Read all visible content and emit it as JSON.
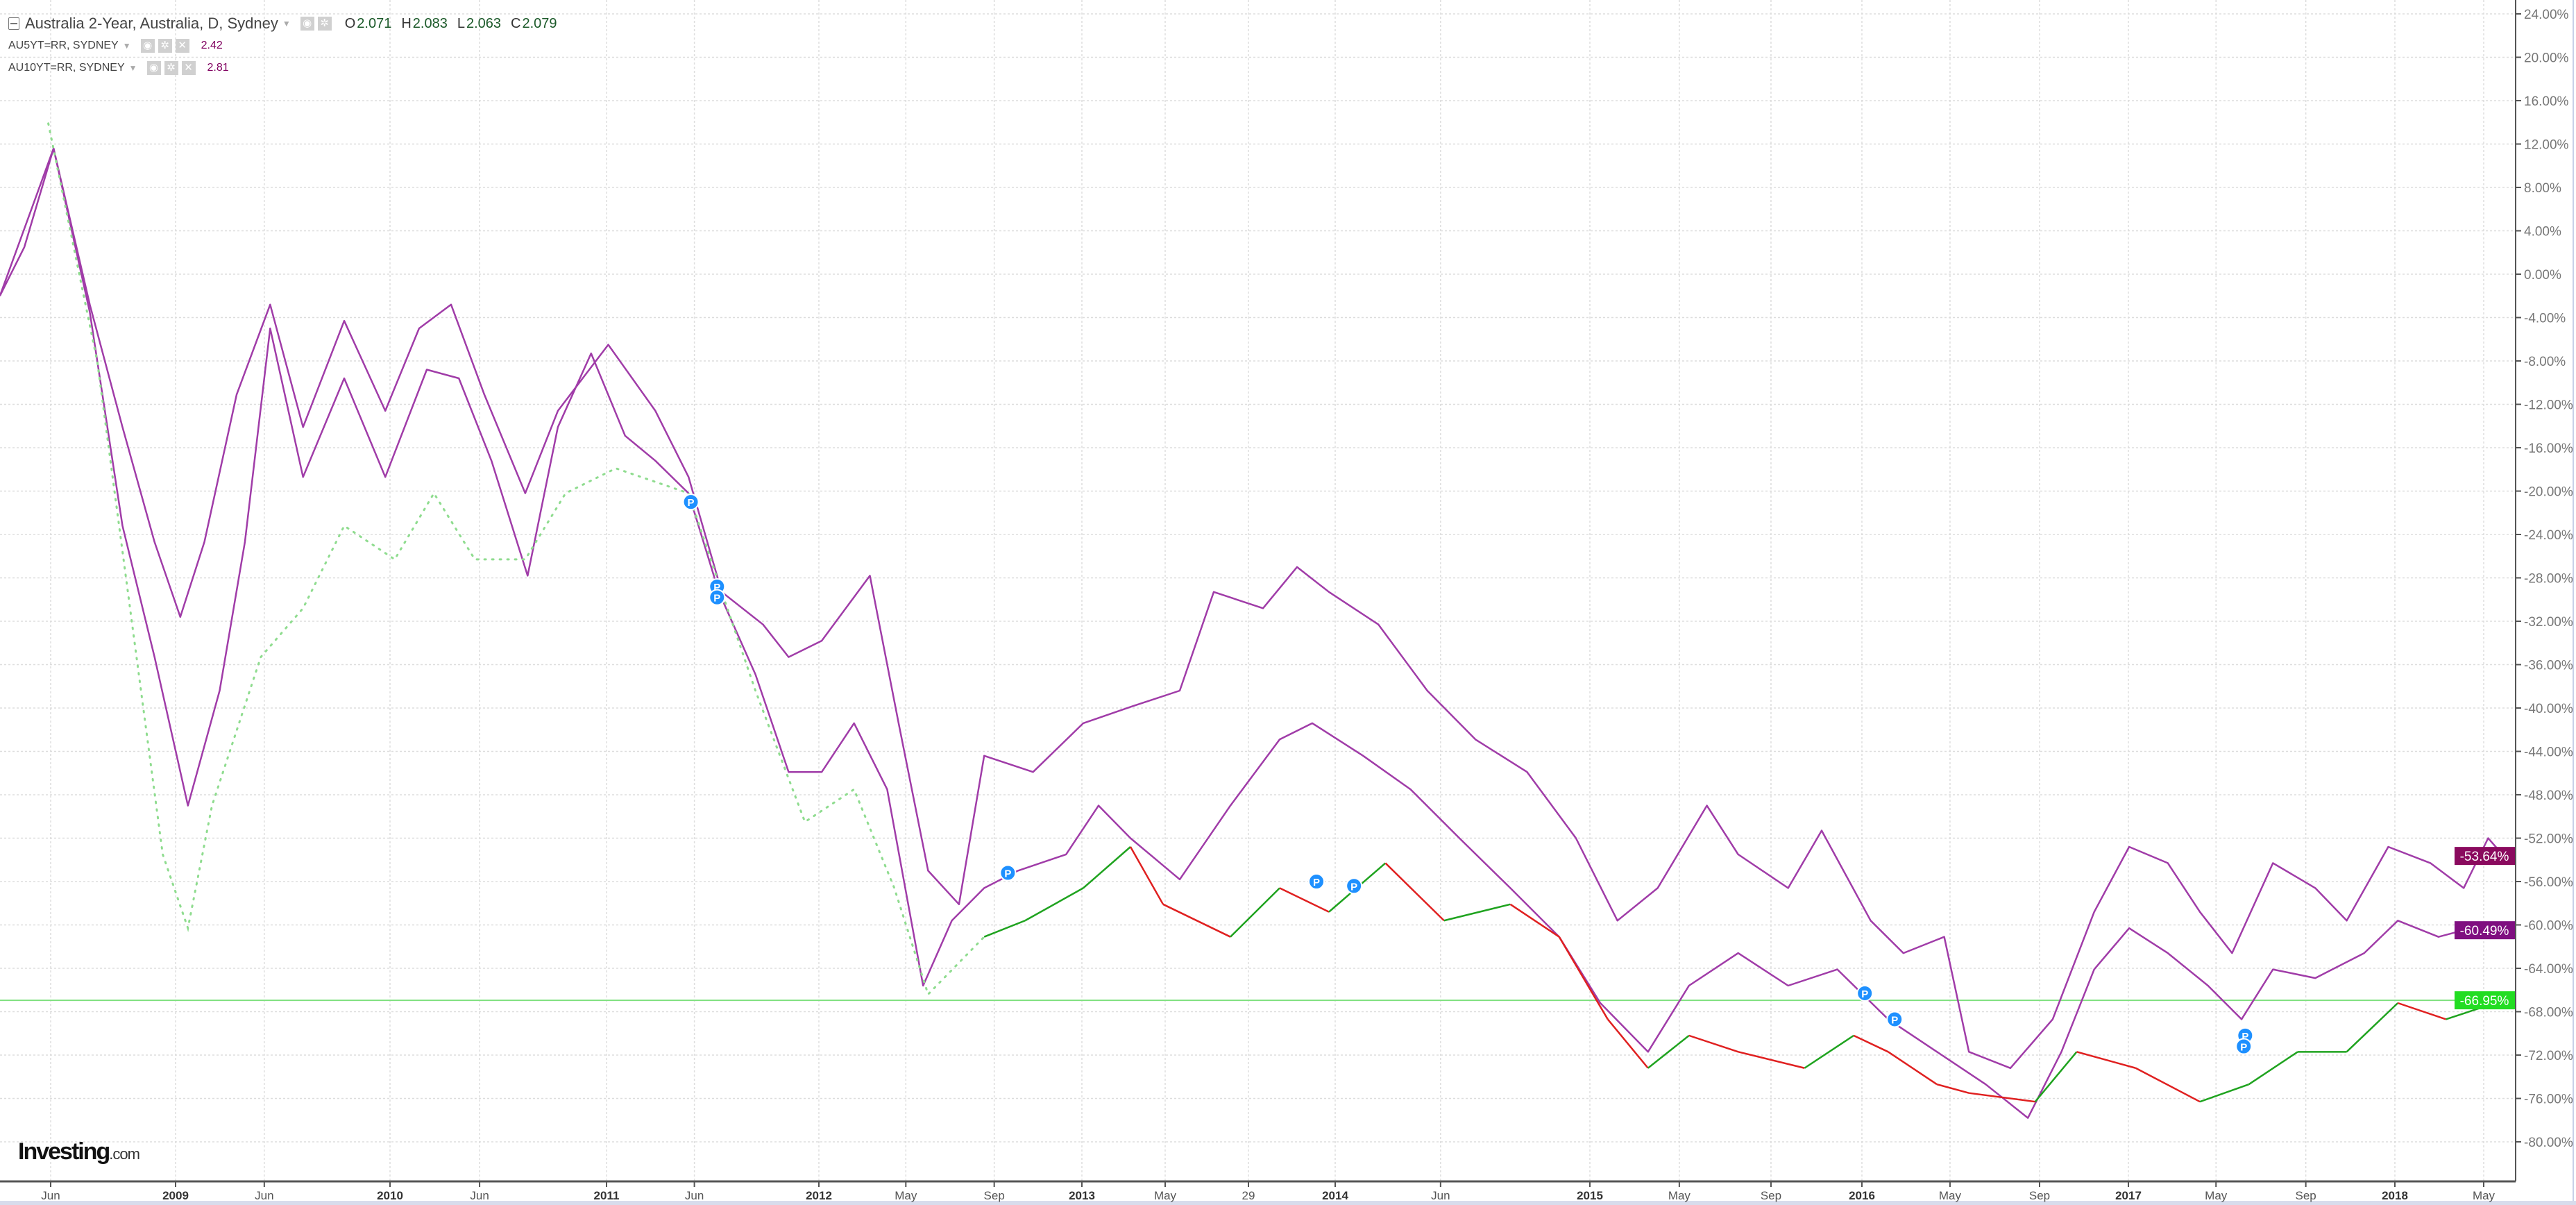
{
  "header": {
    "title": "Australia 2-Year, Australia, D, Sydney",
    "ohlc": [
      {
        "k": "O",
        "v": "2.071"
      },
      {
        "k": "H",
        "v": "2.083"
      },
      {
        "k": "L",
        "v": "2.063"
      },
      {
        "k": "C",
        "v": "2.079"
      }
    ],
    "overlays": [
      {
        "label": "AU5YT=RR, SYDNEY",
        "value": "2.42"
      },
      {
        "label": "AU10YT=RR, SYDNEY",
        "value": "2.81"
      }
    ],
    "icons": [
      "collapse-icon",
      "caret-down-icon",
      "eye-icon",
      "gear-icon",
      "close-icon"
    ]
  },
  "logo": {
    "text": "Investing",
    "suffix": ".com"
  },
  "colors": {
    "series_line": "#a03ca8",
    "label_10y": "#8a0a5e",
    "label_5y": "#7f0f80",
    "label_2y": "#22dd22",
    "candle_up": "#1fa31f",
    "candle_down": "#e02020",
    "early_dots": "#8fdc8f",
    "marker": "#1e90ff",
    "grid": "#dddddd",
    "axis_text": "#777777"
  },
  "chart_data": {
    "type": "line",
    "ylim": [
      -80,
      24
    ],
    "y_unit": "%",
    "y_axis_side": "right",
    "grid": true,
    "yticks": [
      "24.00%",
      "20.00%",
      "16.00%",
      "12.00%",
      "8.00%",
      "4.00%",
      "0.00%",
      "-4.00%",
      "-8.00%",
      "-12.00%",
      "-16.00%",
      "-20.00%",
      "-24.00%",
      "-28.00%",
      "-32.00%",
      "-36.00%",
      "-40.00%",
      "-44.00%",
      "-48.00%",
      "-52.00%",
      "-56.00%",
      "-60.00%",
      "-64.00%",
      "-68.00%",
      "-72.00%",
      "-76.00%",
      "-80.00%"
    ],
    "ytick_values": [
      24,
      20,
      16,
      12,
      8,
      4,
      0,
      -4,
      -8,
      -12,
      -16,
      -20,
      -24,
      -28,
      -32,
      -36,
      -40,
      -44,
      -48,
      -52,
      -56,
      -60,
      -64,
      -68,
      -72,
      -76,
      -80
    ],
    "xlim": [
      "2008-03-06",
      "2018-06-01"
    ],
    "xticks": [
      {
        "date": "2008-06-01",
        "label": "Jun",
        "major": false
      },
      {
        "date": "2009-01-01",
        "label": "2009",
        "major": true
      },
      {
        "date": "2009-06-01",
        "label": "Jun",
        "major": false
      },
      {
        "date": "2010-01-01",
        "label": "2010",
        "major": true
      },
      {
        "date": "2010-06-01",
        "label": "Jun",
        "major": false
      },
      {
        "date": "2011-01-01",
        "label": "2011",
        "major": true
      },
      {
        "date": "2011-06-01",
        "label": "Jun",
        "major": false
      },
      {
        "date": "2012-01-01",
        "label": "2012",
        "major": true
      },
      {
        "date": "2012-05-01",
        "label": "May",
        "major": false
      },
      {
        "date": "2012-09-01",
        "label": "Sep",
        "major": false
      },
      {
        "date": "2013-01-01",
        "label": "2013",
        "major": true
      },
      {
        "date": "2013-05-01",
        "label": "May",
        "major": false
      },
      {
        "date": "2013-08-29",
        "label": "29",
        "major": false
      },
      {
        "date": "2014-01-01",
        "label": "2014",
        "major": true
      },
      {
        "date": "2014-06-01",
        "label": "Jun",
        "major": false
      },
      {
        "date": "2015-01-01",
        "label": "2015",
        "major": true
      },
      {
        "date": "2015-05-01",
        "label": "May",
        "major": false
      },
      {
        "date": "2015-09-01",
        "label": "Sep",
        "major": false
      },
      {
        "date": "2016-01-01",
        "label": "2016",
        "major": true
      },
      {
        "date": "2016-05-01",
        "label": "May",
        "major": false
      },
      {
        "date": "2016-09-01",
        "label": "Sep",
        "major": false
      },
      {
        "date": "2017-01-01",
        "label": "2017",
        "major": true
      },
      {
        "date": "2017-05-01",
        "label": "May",
        "major": false
      },
      {
        "date": "2017-09-01",
        "label": "Sep",
        "major": false
      },
      {
        "date": "2018-01-01",
        "label": "2018",
        "major": true
      },
      {
        "date": "2018-05-01",
        "label": "May",
        "major": false
      }
    ],
    "reference_line": {
      "value": -66.95,
      "label": "-66.95%"
    },
    "series": [
      {
        "name": "AU10YT=RR, SYDNEY",
        "last_label": "-53.64%",
        "points": [
          [
            "2008-03-06",
            -2.0
          ],
          [
            "2008-04-17",
            2.5
          ],
          [
            "2008-06-06",
            11.6
          ],
          [
            "2008-08-07",
            -2.8
          ],
          [
            "2008-10-02",
            -14.1
          ],
          [
            "2008-11-26",
            -24.7
          ],
          [
            "2009-01-09",
            -31.6
          ],
          [
            "2009-02-19",
            -24.7
          ],
          [
            "2009-04-15",
            -11.1
          ],
          [
            "2009-06-11",
            -2.8
          ],
          [
            "2009-08-06",
            -14.1
          ],
          [
            "2009-10-15",
            -4.3
          ],
          [
            "2009-12-24",
            -12.6
          ],
          [
            "2010-02-19",
            -5.0
          ],
          [
            "2010-04-14",
            -2.8
          ],
          [
            "2010-06-09",
            -11.1
          ],
          [
            "2010-08-17",
            -20.2
          ],
          [
            "2010-10-11",
            -12.6
          ],
          [
            "2011-01-04",
            -6.5
          ],
          [
            "2011-03-26",
            -12.6
          ],
          [
            "2011-05-22",
            -18.7
          ],
          [
            "2011-07-18",
            -29.3
          ],
          [
            "2011-09-27",
            -32.3
          ],
          [
            "2011-11-10",
            -35.3
          ],
          [
            "2012-01-05",
            -33.8
          ],
          [
            "2012-03-12",
            -27.8
          ],
          [
            "2012-04-21",
            -41.4
          ],
          [
            "2012-06-01",
            -55.0
          ],
          [
            "2012-07-14",
            -58.1
          ],
          [
            "2012-08-18",
            -44.4
          ],
          [
            "2012-10-25",
            -45.9
          ],
          [
            "2013-01-03",
            -41.4
          ],
          [
            "2013-03-12",
            -39.9
          ],
          [
            "2013-05-22",
            -38.4
          ],
          [
            "2013-07-10",
            -29.3
          ],
          [
            "2013-09-19",
            -30.8
          ],
          [
            "2013-11-07",
            -27.0
          ],
          [
            "2013-12-23",
            -29.3
          ],
          [
            "2014-03-04",
            -32.3
          ],
          [
            "2014-05-13",
            -38.4
          ],
          [
            "2014-07-21",
            -42.9
          ],
          [
            "2014-10-03",
            -45.9
          ],
          [
            "2014-12-12",
            -52.0
          ],
          [
            "2015-02-07",
            -59.6
          ],
          [
            "2015-04-02",
            -56.6
          ],
          [
            "2015-06-07",
            -49.0
          ],
          [
            "2015-07-19",
            -53.5
          ],
          [
            "2015-09-24",
            -56.6
          ],
          [
            "2015-11-08",
            -51.3
          ],
          [
            "2016-01-13",
            -59.6
          ],
          [
            "2016-02-27",
            -62.6
          ],
          [
            "2016-04-23",
            -61.1
          ],
          [
            "2016-05-27",
            -71.7
          ],
          [
            "2016-07-23",
            -73.2
          ],
          [
            "2016-09-19",
            -68.7
          ],
          [
            "2016-11-15",
            -58.8
          ],
          [
            "2017-01-02",
            -52.8
          ],
          [
            "2017-02-24",
            -54.3
          ],
          [
            "2017-04-09",
            -58.8
          ],
          [
            "2017-05-23",
            -62.6
          ],
          [
            "2017-07-18",
            -54.3
          ],
          [
            "2017-09-14",
            -56.6
          ],
          [
            "2017-10-27",
            -59.6
          ],
          [
            "2017-12-23",
            -52.8
          ],
          [
            "2018-02-18",
            -54.3
          ],
          [
            "2018-04-04",
            -56.6
          ],
          [
            "2018-05-07",
            -52.0
          ],
          [
            "2018-05-28",
            -53.64
          ]
        ]
      },
      {
        "name": "AU5YT=RR, SYDNEY",
        "last_label": "-60.49%",
        "points": [
          [
            "2008-03-06",
            -2.0
          ],
          [
            "2008-06-06",
            11.6
          ],
          [
            "2008-08-07",
            -3.5
          ],
          [
            "2008-10-02",
            -23.2
          ],
          [
            "2008-11-26",
            -35.3
          ],
          [
            "2009-01-22",
            -49.0
          ],
          [
            "2009-03-17",
            -38.4
          ],
          [
            "2009-04-29",
            -24.7
          ],
          [
            "2009-06-11",
            -5.0
          ],
          [
            "2009-08-06",
            -18.7
          ],
          [
            "2009-10-15",
            -9.6
          ],
          [
            "2009-12-24",
            -18.7
          ],
          [
            "2010-03-04",
            -8.8
          ],
          [
            "2010-04-27",
            -9.6
          ],
          [
            "2010-06-21",
            -17.2
          ],
          [
            "2010-08-21",
            -27.8
          ],
          [
            "2010-10-11",
            -14.1
          ],
          [
            "2010-12-06",
            -7.3
          ],
          [
            "2011-02-02",
            -14.9
          ],
          [
            "2011-03-26",
            -17.2
          ],
          [
            "2011-05-22",
            -20.2
          ],
          [
            "2011-07-13",
            -29.3
          ],
          [
            "2011-09-14",
            -36.9
          ],
          [
            "2011-11-10",
            -45.9
          ],
          [
            "2012-01-05",
            -45.9
          ],
          [
            "2012-02-19",
            -41.4
          ],
          [
            "2012-04-05",
            -47.5
          ],
          [
            "2012-05-25",
            -65.6
          ],
          [
            "2012-07-04",
            -59.6
          ],
          [
            "2012-08-18",
            -56.6
          ],
          [
            "2012-10-04",
            -55.0
          ],
          [
            "2012-12-10",
            -53.5
          ],
          [
            "2013-01-25",
            -49.0
          ],
          [
            "2013-03-12",
            -52.0
          ],
          [
            "2013-05-22",
            -55.8
          ],
          [
            "2013-08-03",
            -49.0
          ],
          [
            "2013-10-13",
            -42.9
          ],
          [
            "2013-11-29",
            -41.4
          ],
          [
            "2014-02-10",
            -44.4
          ],
          [
            "2014-04-19",
            -47.5
          ],
          [
            "2014-06-28",
            -52.0
          ],
          [
            "2014-09-09",
            -56.6
          ],
          [
            "2014-11-18",
            -61.1
          ],
          [
            "2015-01-15",
            -67.2
          ],
          [
            "2015-03-20",
            -71.7
          ],
          [
            "2015-05-14",
            -65.6
          ],
          [
            "2015-07-19",
            -62.6
          ],
          [
            "2015-09-24",
            -65.6
          ],
          [
            "2015-11-29",
            -64.1
          ],
          [
            "2016-02-06",
            -68.7
          ],
          [
            "2016-04-13",
            -71.7
          ],
          [
            "2016-06-19",
            -74.7
          ],
          [
            "2016-08-16",
            -77.8
          ],
          [
            "2016-10-01",
            -71.7
          ],
          [
            "2016-11-15",
            -64.1
          ],
          [
            "2017-01-02",
            -60.3
          ],
          [
            "2017-02-24",
            -62.6
          ],
          [
            "2017-04-20",
            -65.6
          ],
          [
            "2017-06-05",
            -68.7
          ],
          [
            "2017-07-18",
            -64.1
          ],
          [
            "2017-09-14",
            -64.9
          ],
          [
            "2017-11-20",
            -62.6
          ],
          [
            "2018-01-05",
            -59.6
          ],
          [
            "2018-03-01",
            -61.1
          ],
          [
            "2018-04-14",
            -60.3
          ],
          [
            "2018-05-28",
            -60.49
          ]
        ]
      },
      {
        "name": "Australia 2-Year, Australia, D, Sydney",
        "last_label": "-66.95%",
        "style_change_date": "2012-08-18",
        "points": [
          [
            "2008-05-28",
            13.9
          ],
          [
            "2008-08-20",
            -8.1
          ],
          [
            "2008-10-15",
            -30.8
          ],
          [
            "2008-12-10",
            -53.5
          ],
          [
            "2009-01-22",
            -60.3
          ],
          [
            "2009-03-04",
            -49.0
          ],
          [
            "2009-05-26",
            -35.3
          ],
          [
            "2009-08-06",
            -30.8
          ],
          [
            "2009-10-15",
            -23.2
          ],
          [
            "2010-01-09",
            -26.3
          ],
          [
            "2010-03-16",
            -20.2
          ],
          [
            "2010-05-24",
            -26.3
          ],
          [
            "2010-08-17",
            -26.3
          ],
          [
            "2010-10-24",
            -20.2
          ],
          [
            "2011-01-17",
            -17.9
          ],
          [
            "2011-05-22",
            -20.2
          ],
          [
            "2011-07-18",
            -29.3
          ],
          [
            "2011-09-14",
            -38.4
          ],
          [
            "2011-12-08",
            -50.5
          ],
          [
            "2012-02-19",
            -47.5
          ],
          [
            "2012-04-15",
            -56.6
          ],
          [
            "2012-06-01",
            -66.4
          ],
          [
            "2012-08-18",
            -61.1
          ],
          [
            "2012-10-14",
            -59.6
          ],
          [
            "2013-01-03",
            -56.6
          ],
          [
            "2013-03-12",
            -52.8
          ],
          [
            "2013-04-28",
            -58.1
          ],
          [
            "2013-08-03",
            -61.1
          ],
          [
            "2013-10-13",
            -56.6
          ],
          [
            "2013-12-23",
            -58.8
          ],
          [
            "2014-03-14",
            -54.3
          ],
          [
            "2014-06-06",
            -59.6
          ],
          [
            "2014-09-09",
            -58.1
          ],
          [
            "2014-11-18",
            -61.1
          ],
          [
            "2015-01-25",
            -68.7
          ],
          [
            "2015-03-20",
            -73.2
          ],
          [
            "2015-05-14",
            -70.2
          ],
          [
            "2015-07-19",
            -71.7
          ],
          [
            "2015-10-16",
            -73.2
          ],
          [
            "2015-12-21",
            -70.2
          ],
          [
            "2016-02-06",
            -71.7
          ],
          [
            "2016-04-13",
            -74.7
          ],
          [
            "2016-05-27",
            -75.5
          ],
          [
            "2016-08-26",
            -76.3
          ],
          [
            "2016-10-22",
            -71.7
          ],
          [
            "2017-01-11",
            -73.2
          ],
          [
            "2017-04-09",
            -76.3
          ],
          [
            "2017-06-15",
            -74.7
          ],
          [
            "2017-08-21",
            -71.7
          ],
          [
            "2017-10-27",
            -71.7
          ],
          [
            "2018-01-05",
            -67.2
          ],
          [
            "2018-03-11",
            -68.7
          ],
          [
            "2018-05-28",
            -66.95
          ]
        ]
      }
    ],
    "markers": [
      {
        "date": "2011-05-26",
        "value": -21.0,
        "label": "P"
      },
      {
        "date": "2011-07-10",
        "value": -28.8,
        "label": "P"
      },
      {
        "date": "2011-07-10",
        "value": -29.8,
        "label": "P"
      },
      {
        "date": "2012-09-20",
        "value": -55.2,
        "label": "P"
      },
      {
        "date": "2013-12-05",
        "value": -56.0,
        "label": "P"
      },
      {
        "date": "2014-01-28",
        "value": -56.4,
        "label": "P"
      },
      {
        "date": "2016-01-05",
        "value": -66.3,
        "label": "P"
      },
      {
        "date": "2016-02-15",
        "value": -68.7,
        "label": "P"
      },
      {
        "date": "2017-06-10",
        "value": -70.2,
        "label": "P"
      },
      {
        "date": "2017-06-08",
        "value": -71.2,
        "label": "P"
      }
    ]
  }
}
